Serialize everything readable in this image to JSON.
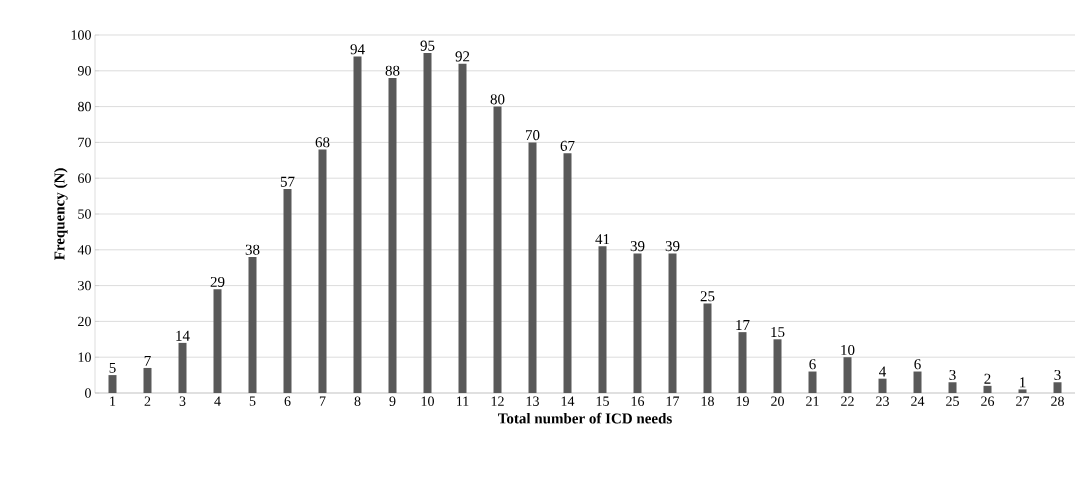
{
  "chart_data": {
    "type": "bar",
    "xlabel": "Total number of ICD needs",
    "ylabel": "Frequency (N)",
    "categories": [
      "1",
      "2",
      "3",
      "4",
      "5",
      "6",
      "7",
      "8",
      "9",
      "10",
      "11",
      "12",
      "13",
      "14",
      "15",
      "16",
      "17",
      "18",
      "19",
      "20",
      "21",
      "22",
      "23",
      "24",
      "25",
      "26",
      "27",
      "28"
    ],
    "values": [
      5,
      7,
      14,
      29,
      38,
      57,
      68,
      94,
      88,
      95,
      92,
      80,
      70,
      67,
      41,
      39,
      39,
      25,
      17,
      15,
      6,
      10,
      4,
      6,
      3,
      2,
      1,
      3
    ],
    "color": "#595959",
    "ylim": [
      0,
      100
    ],
    "yticks": [
      0,
      10,
      20,
      30,
      40,
      50,
      60,
      70,
      80,
      90,
      100
    ],
    "grid": "y",
    "data_labels": true
  }
}
